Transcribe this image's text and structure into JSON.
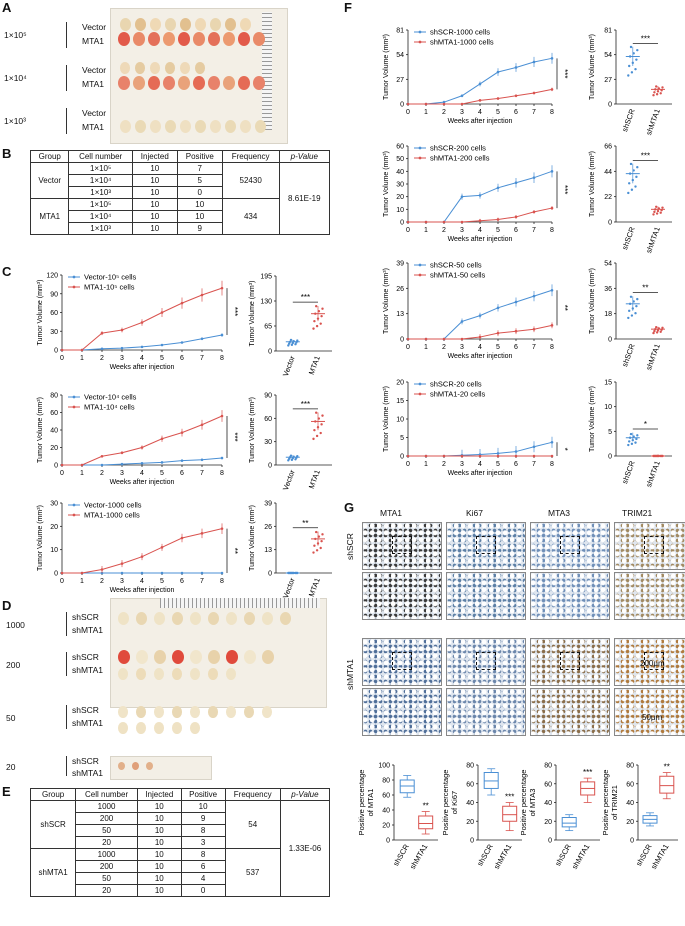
{
  "panels": {
    "A": "A",
    "B": "B",
    "C": "C",
    "D": "D",
    "E": "E",
    "F": "F",
    "G": "G"
  },
  "panelA": {
    "rows": [
      {
        "dose": "1×10⁵",
        "groups": [
          "Vector",
          "MTA1"
        ]
      },
      {
        "dose": "1×10⁴",
        "groups": [
          "Vector",
          "MTA1"
        ]
      },
      {
        "dose": "1×10³",
        "groups": [
          "Vector",
          "MTA1"
        ]
      }
    ]
  },
  "tableB": {
    "headers": [
      "Group",
      "Cell number",
      "Injected",
      "Positive",
      "Frequency",
      "p-Value"
    ],
    "rows": [
      {
        "group": "Vector",
        "cells": "1×10⁵",
        "inj": "10",
        "pos": "7"
      },
      {
        "group": "",
        "cells": "1×10⁴",
        "inj": "10",
        "pos": "5"
      },
      {
        "group": "",
        "cells": "1×10³",
        "inj": "10",
        "pos": "0"
      },
      {
        "group": "MTA1",
        "cells": "1×10⁵",
        "inj": "10",
        "pos": "10"
      },
      {
        "group": "",
        "cells": "1×10⁴",
        "inj": "10",
        "pos": "10"
      },
      {
        "group": "",
        "cells": "1×10³",
        "inj": "10",
        "pos": "9"
      }
    ],
    "freq": [
      "52430",
      "434"
    ],
    "p": "8.61E-19"
  },
  "panelD": {
    "rows": [
      {
        "dose": "1000",
        "groups": [
          "shSCR",
          "shMTA1"
        ]
      },
      {
        "dose": "200",
        "groups": [
          "shSCR",
          "shMTA1"
        ]
      },
      {
        "dose": "50",
        "groups": [
          "shSCR",
          "shMTA1"
        ]
      },
      {
        "dose": "20",
        "groups": [
          "shSCR",
          "shMTA1"
        ]
      }
    ]
  },
  "tableE": {
    "headers": [
      "Group",
      "Cell number",
      "Injected",
      "Positive",
      "Frequency",
      "p-Value"
    ],
    "rows": [
      {
        "group": "shSCR",
        "cells": "1000",
        "inj": "10",
        "pos": "10"
      },
      {
        "group": "",
        "cells": "200",
        "inj": "10",
        "pos": "9"
      },
      {
        "group": "",
        "cells": "50",
        "inj": "10",
        "pos": "8"
      },
      {
        "group": "",
        "cells": "20",
        "inj": "10",
        "pos": "3"
      },
      {
        "group": "shMTA1",
        "cells": "1000",
        "inj": "10",
        "pos": "8"
      },
      {
        "group": "",
        "cells": "200",
        "inj": "10",
        "pos": "6"
      },
      {
        "group": "",
        "cells": "50",
        "inj": "10",
        "pos": "4"
      },
      {
        "group": "",
        "cells": "20",
        "inj": "10",
        "pos": "0"
      }
    ],
    "freq": [
      "54",
      "537"
    ],
    "p": "1.33E-06"
  },
  "panelG": {
    "stains": [
      "MTA1",
      "Ki67",
      "MTA3",
      "TRIM21"
    ],
    "rows": [
      "shSCR",
      "shMTA1"
    ],
    "scale1": "200μm",
    "scale2": "50μm"
  },
  "chart_data": [
    {
      "id": "C1",
      "type": "line",
      "xlabel": "Weeks after injection",
      "ylabel": "Tumor Volume (mm³)",
      "ylim": [
        0,
        120
      ],
      "yticks": [
        0,
        30,
        60,
        90,
        120
      ],
      "x": [
        0,
        1,
        2,
        3,
        4,
        5,
        6,
        7,
        8
      ],
      "sig": "***",
      "series": [
        {
          "name": "Vector-10⁵ cells",
          "color": "#4a8fd4",
          "values": [
            0,
            0,
            2,
            3,
            5,
            8,
            12,
            18,
            24
          ]
        },
        {
          "name": "MTA1-10⁵ cells",
          "color": "#d9534f",
          "values": [
            0,
            0,
            27,
            32,
            44,
            60,
            75,
            88,
            99
          ]
        }
      ]
    },
    {
      "id": "C2",
      "type": "line",
      "xlabel": "Weeks after injection",
      "ylabel": "Tumor Volume (mm³)",
      "ylim": [
        0,
        80
      ],
      "yticks": [
        0,
        20,
        40,
        60,
        80
      ],
      "x": [
        0,
        1,
        2,
        3,
        4,
        5,
        6,
        7,
        8
      ],
      "sig": "***",
      "series": [
        {
          "name": "Vector-10⁴ cells",
          "color": "#4a8fd4",
          "values": [
            0,
            0,
            0,
            1,
            2,
            3,
            5,
            6,
            8
          ]
        },
        {
          "name": "MTA1-10⁴ cells",
          "color": "#d9534f",
          "values": [
            0,
            0,
            10,
            14,
            20,
            30,
            37,
            46,
            56
          ]
        }
      ]
    },
    {
      "id": "C3",
      "type": "line",
      "xlabel": "Weeks after injection",
      "ylabel": "Tumor Volume (mm³)",
      "ylim": [
        0,
        30
      ],
      "yticks": [
        0,
        10,
        20,
        30
      ],
      "x": [
        0,
        1,
        2,
        3,
        4,
        5,
        6,
        7,
        8
      ],
      "sig": "**",
      "series": [
        {
          "name": "Vector-1000 cells",
          "color": "#4a8fd4",
          "values": [
            0,
            0,
            0,
            0,
            0,
            0,
            0,
            0,
            0
          ]
        },
        {
          "name": "MTA1-1000 cells",
          "color": "#d9534f",
          "values": [
            0,
            0,
            1.5,
            4,
            7,
            11,
            15,
            17,
            19
          ]
        }
      ]
    },
    {
      "id": "Cs1",
      "type": "scatter",
      "ylabel": "Tumor Volume (mm³)",
      "ylim": [
        0,
        195
      ],
      "yticks": [
        0,
        65,
        130,
        195
      ],
      "categories": [
        "Vector",
        "MTA1"
      ],
      "means": [
        24,
        97
      ],
      "sig": "***"
    },
    {
      "id": "Cs2",
      "type": "scatter",
      "ylabel": "Tumor Volume (mm³)",
      "ylim": [
        0,
        90
      ],
      "yticks": [
        0,
        30,
        60,
        90
      ],
      "categories": [
        "Vector",
        "MTA1"
      ],
      "means": [
        10,
        56
      ],
      "sig": "***"
    },
    {
      "id": "Cs3",
      "type": "scatter",
      "ylabel": "Tumor Volume (mm³)",
      "ylim": [
        0,
        39
      ],
      "yticks": [
        0,
        13,
        26,
        39
      ],
      "categories": [
        "Vector",
        "MTA1"
      ],
      "means": [
        0,
        19
      ],
      "sig": "**"
    },
    {
      "id": "F1",
      "type": "line",
      "xlabel": "Weeks after injection",
      "ylabel": "Tumor Volume (mm³)",
      "ylim": [
        0,
        81
      ],
      "yticks": [
        0,
        27,
        54,
        81
      ],
      "x": [
        0,
        1,
        2,
        3,
        4,
        5,
        6,
        7,
        8
      ],
      "sig": "***",
      "series": [
        {
          "name": "shSCR-1000 cells",
          "color": "#4a8fd4",
          "values": [
            0,
            0,
            2,
            9,
            22,
            35,
            40,
            46,
            50
          ]
        },
        {
          "name": "shMTA1-1000 cells",
          "color": "#d9534f",
          "values": [
            0,
            0,
            0,
            0,
            4,
            6,
            9,
            12,
            16
          ]
        }
      ]
    },
    {
      "id": "F2",
      "type": "line",
      "xlabel": "Weeks after injection",
      "ylabel": "Tumor Volume (mm³)",
      "ylim": [
        0,
        60
      ],
      "yticks": [
        0,
        10,
        20,
        30,
        40,
        50,
        60
      ],
      "x": [
        0,
        1,
        2,
        3,
        4,
        5,
        6,
        7,
        8
      ],
      "sig": "***",
      "series": [
        {
          "name": "shSCR-200 cells",
          "color": "#4a8fd4",
          "values": [
            0,
            0,
            0,
            20,
            21,
            27,
            31,
            35,
            40
          ]
        },
        {
          "name": "shMTA1-200 cells",
          "color": "#d9534f",
          "values": [
            0,
            0,
            0,
            0,
            1,
            2,
            4,
            8,
            11
          ]
        }
      ]
    },
    {
      "id": "F3",
      "type": "line",
      "xlabel": "Weeks after injection",
      "ylabel": "Tumor Volume (mm³)",
      "ylim": [
        0,
        39
      ],
      "yticks": [
        0,
        13,
        26,
        39
      ],
      "x": [
        0,
        1,
        2,
        3,
        4,
        5,
        6,
        7,
        8
      ],
      "sig": "**",
      "series": [
        {
          "name": "shSCR-50 cells",
          "color": "#4a8fd4",
          "values": [
            0,
            0,
            0,
            9,
            12,
            16,
            19,
            22,
            25
          ]
        },
        {
          "name": "shMTA1-50 cells",
          "color": "#d9534f",
          "values": [
            0,
            0,
            0,
            0,
            1,
            3,
            4,
            5,
            7
          ]
        }
      ]
    },
    {
      "id": "F4",
      "type": "line",
      "xlabel": "Weeks after injection",
      "ylabel": "Tumor Volume (mm³)",
      "ylim": [
        0,
        20
      ],
      "yticks": [
        0,
        5,
        10,
        15,
        20
      ],
      "x": [
        0,
        1,
        2,
        3,
        4,
        5,
        6,
        7,
        8
      ],
      "sig": "*",
      "series": [
        {
          "name": "shSCR-20 cells",
          "color": "#4a8fd4",
          "values": [
            0,
            0,
            0,
            0.2,
            0.4,
            0.7,
            1.2,
            2.5,
            3.7
          ]
        },
        {
          "name": "shMTA1-20 cells",
          "color": "#d9534f",
          "values": [
            0,
            0,
            0,
            0,
            0,
            0,
            0,
            0,
            0
          ]
        }
      ]
    },
    {
      "id": "Fs1",
      "type": "scatter",
      "ylabel": "Tumor Volume (mm³)",
      "ylim": [
        0,
        81
      ],
      "yticks": [
        0,
        27,
        54,
        81
      ],
      "categories": [
        "shSCR",
        "shMTA1"
      ],
      "means": [
        52,
        16
      ],
      "sig": "***"
    },
    {
      "id": "Fs2",
      "type": "scatter",
      "ylabel": "Tumor Volume (mm³)",
      "ylim": [
        0,
        66
      ],
      "yticks": [
        0,
        22,
        44,
        66
      ],
      "categories": [
        "shSCR",
        "shMTA1"
      ],
      "means": [
        42,
        11
      ],
      "sig": "***"
    },
    {
      "id": "Fs3",
      "type": "scatter",
      "ylabel": "Tumor Volume (mm³)",
      "ylim": [
        0,
        54
      ],
      "yticks": [
        0,
        18,
        36,
        54
      ],
      "categories": [
        "shSCR",
        "shMTA1"
      ],
      "means": [
        25,
        7
      ],
      "sig": "**"
    },
    {
      "id": "Fs4",
      "type": "scatter",
      "ylabel": "Tumor Volume (mm³)",
      "ylim": [
        0,
        15
      ],
      "yticks": [
        0,
        5,
        10,
        15
      ],
      "categories": [
        "shSCR",
        "shMTA1"
      ],
      "means": [
        3.7,
        0
      ],
      "sig": "*"
    },
    {
      "id": "G1",
      "type": "box",
      "ylabel": "Positive percentage of MTA1",
      "ylim": [
        0,
        100
      ],
      "yticks": [
        0,
        20,
        40,
        60,
        80,
        100
      ],
      "categories": [
        "shSCR",
        "shMTA1"
      ],
      "sig": "**",
      "boxes": [
        {
          "min": 57,
          "q1": 63,
          "median": 72,
          "q3": 80,
          "max": 86,
          "color": "#4a8fd4"
        },
        {
          "min": 8,
          "q1": 15,
          "median": 22,
          "q3": 32,
          "max": 38,
          "color": "#d9534f"
        }
      ]
    },
    {
      "id": "G2",
      "type": "box",
      "ylabel": "Positive percentage of Ki67",
      "ylim": [
        0,
        80
      ],
      "yticks": [
        0,
        20,
        40,
        60,
        80
      ],
      "categories": [
        "shSCR",
        "shMTA1"
      ],
      "sig": "***",
      "boxes": [
        {
          "min": 48,
          "q1": 55,
          "median": 63,
          "q3": 72,
          "max": 76,
          "color": "#4a8fd4"
        },
        {
          "min": 10,
          "q1": 20,
          "median": 27,
          "q3": 36,
          "max": 40,
          "color": "#d9534f"
        }
      ]
    },
    {
      "id": "G3",
      "type": "box",
      "ylabel": "Positive percentage of MTA3",
      "ylim": [
        0,
        80
      ],
      "yticks": [
        0,
        20,
        40,
        60,
        80
      ],
      "categories": [
        "shSCR",
        "shMTA1"
      ],
      "sig": "***",
      "boxes": [
        {
          "min": 10,
          "q1": 14,
          "median": 18,
          "q3": 24,
          "max": 27,
          "color": "#4a8fd4"
        },
        {
          "min": 40,
          "q1": 48,
          "median": 55,
          "q3": 62,
          "max": 66,
          "color": "#d9534f"
        }
      ]
    },
    {
      "id": "G4",
      "type": "box",
      "ylabel": "Positive percentage of TRIM21",
      "ylim": [
        0,
        80
      ],
      "yticks": [
        0,
        20,
        40,
        60,
        80
      ],
      "categories": [
        "shSCR",
        "shMTA1"
      ],
      "sig": "**",
      "boxes": [
        {
          "min": 15,
          "q1": 18,
          "median": 22,
          "q3": 26,
          "max": 29,
          "color": "#4a8fd4"
        },
        {
          "min": 44,
          "q1": 50,
          "median": 58,
          "q3": 68,
          "max": 72,
          "color": "#d9534f"
        }
      ]
    }
  ]
}
